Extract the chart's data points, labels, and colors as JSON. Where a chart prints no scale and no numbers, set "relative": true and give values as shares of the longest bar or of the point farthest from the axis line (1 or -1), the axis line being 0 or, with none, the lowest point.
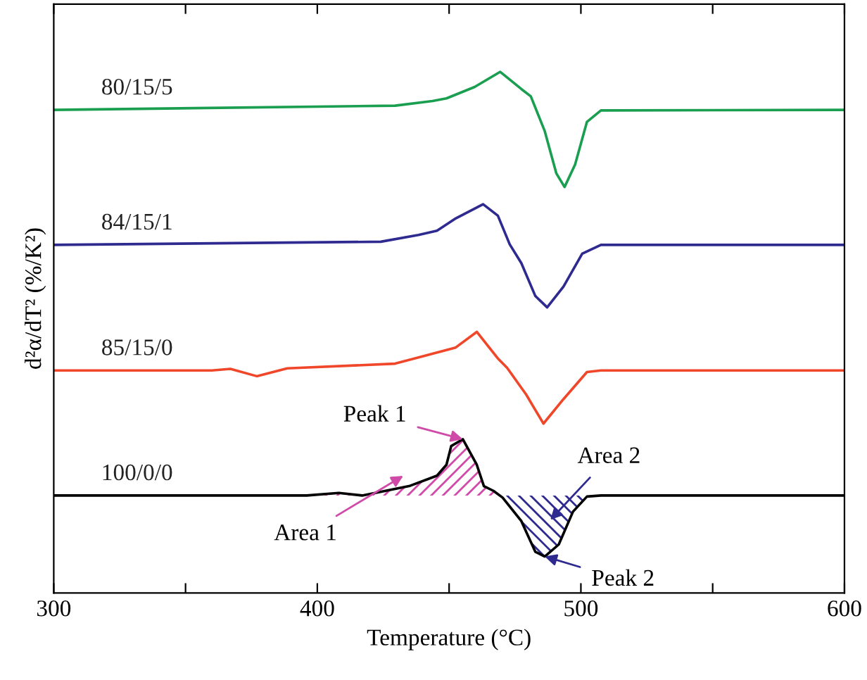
{
  "chart_data": {
    "type": "line",
    "relative": true,
    "xlabel": "Temperature (°C)",
    "ylabel": "d²α/dT² (%/K²)",
    "xlim": [
      300,
      600
    ],
    "xticks": [
      300,
      {
        "value": 350,
        "label": null
      },
      400,
      {
        "value": 450,
        "label": null
      },
      500,
      {
        "value": 550,
        "label": null
      },
      600
    ],
    "grid": false,
    "legend": false,
    "marker": "none",
    "line_style": "solid",
    "series": [
      {
        "name": "80/15/5",
        "color": "#1a9e50",
        "x": [
          300,
          429.5,
          443.7,
          449,
          459.7,
          469.4,
          477.4,
          481,
          486.3,
          490.7,
          493.8,
          497.8,
          502.3,
          507.6,
          600
        ],
        "values": [
          0.927,
          0.935,
          0.944,
          0.949,
          0.971,
          1.0,
          0.967,
          0.953,
          0.886,
          0.805,
          0.779,
          0.822,
          0.904,
          0.926,
          0.927
        ]
      },
      {
        "name": "84/15/1",
        "color": "#2e2a8f",
        "x": [
          300,
          424.1,
          438.4,
          445.4,
          452.6,
          462.9,
          468.5,
          473,
          477.4,
          482.7,
          487.2,
          493.4,
          500.5,
          507.6,
          600
        ],
        "values": [
          0.668,
          0.674,
          0.687,
          0.695,
          0.719,
          0.746,
          0.724,
          0.669,
          0.633,
          0.57,
          0.548,
          0.588,
          0.651,
          0.668,
          0.668
        ]
      },
      {
        "name": "85/15/0",
        "color": "#f0462a",
        "x": [
          300,
          360,
          367,
          377,
          388.6,
          429.5,
          452.5,
          460.5,
          468.5,
          472,
          479.2,
          485.8,
          493.4,
          502.3,
          507.6,
          600
        ],
        "values": [
          0.427,
          0.427,
          0.43,
          0.416,
          0.431,
          0.44,
          0.471,
          0.501,
          0.45,
          0.432,
          0.381,
          0.325,
          0.372,
          0.424,
          0.427,
          0.427
        ]
      },
      {
        "name": "100/0/0",
        "color": "#000000",
        "x": [
          300,
          396,
          408.2,
          417,
          434.8,
          445.4,
          449,
          450.8,
          455.2,
          460.5,
          463.2,
          466.8,
          470.3,
          477.4,
          482.7,
          486.3,
          491.6,
          497,
          502.3,
          507.6,
          600
        ],
        "values": [
          0.187,
          0.187,
          0.192,
          0.187,
          0.205,
          0.225,
          0.246,
          0.282,
          0.295,
          0.246,
          0.205,
          0.196,
          0.183,
          0.138,
          0.079,
          0.07,
          0.093,
          0.156,
          0.185,
          0.187,
          0.187
        ]
      }
    ],
    "annotations": [
      {
        "text": "Peak 1",
        "x": 455.2,
        "y": 0.295
      },
      "Area 1",
      "Area 2",
      {
        "text": "Peak 2",
        "x": 486.3,
        "y": 0.07
      }
    ]
  }
}
